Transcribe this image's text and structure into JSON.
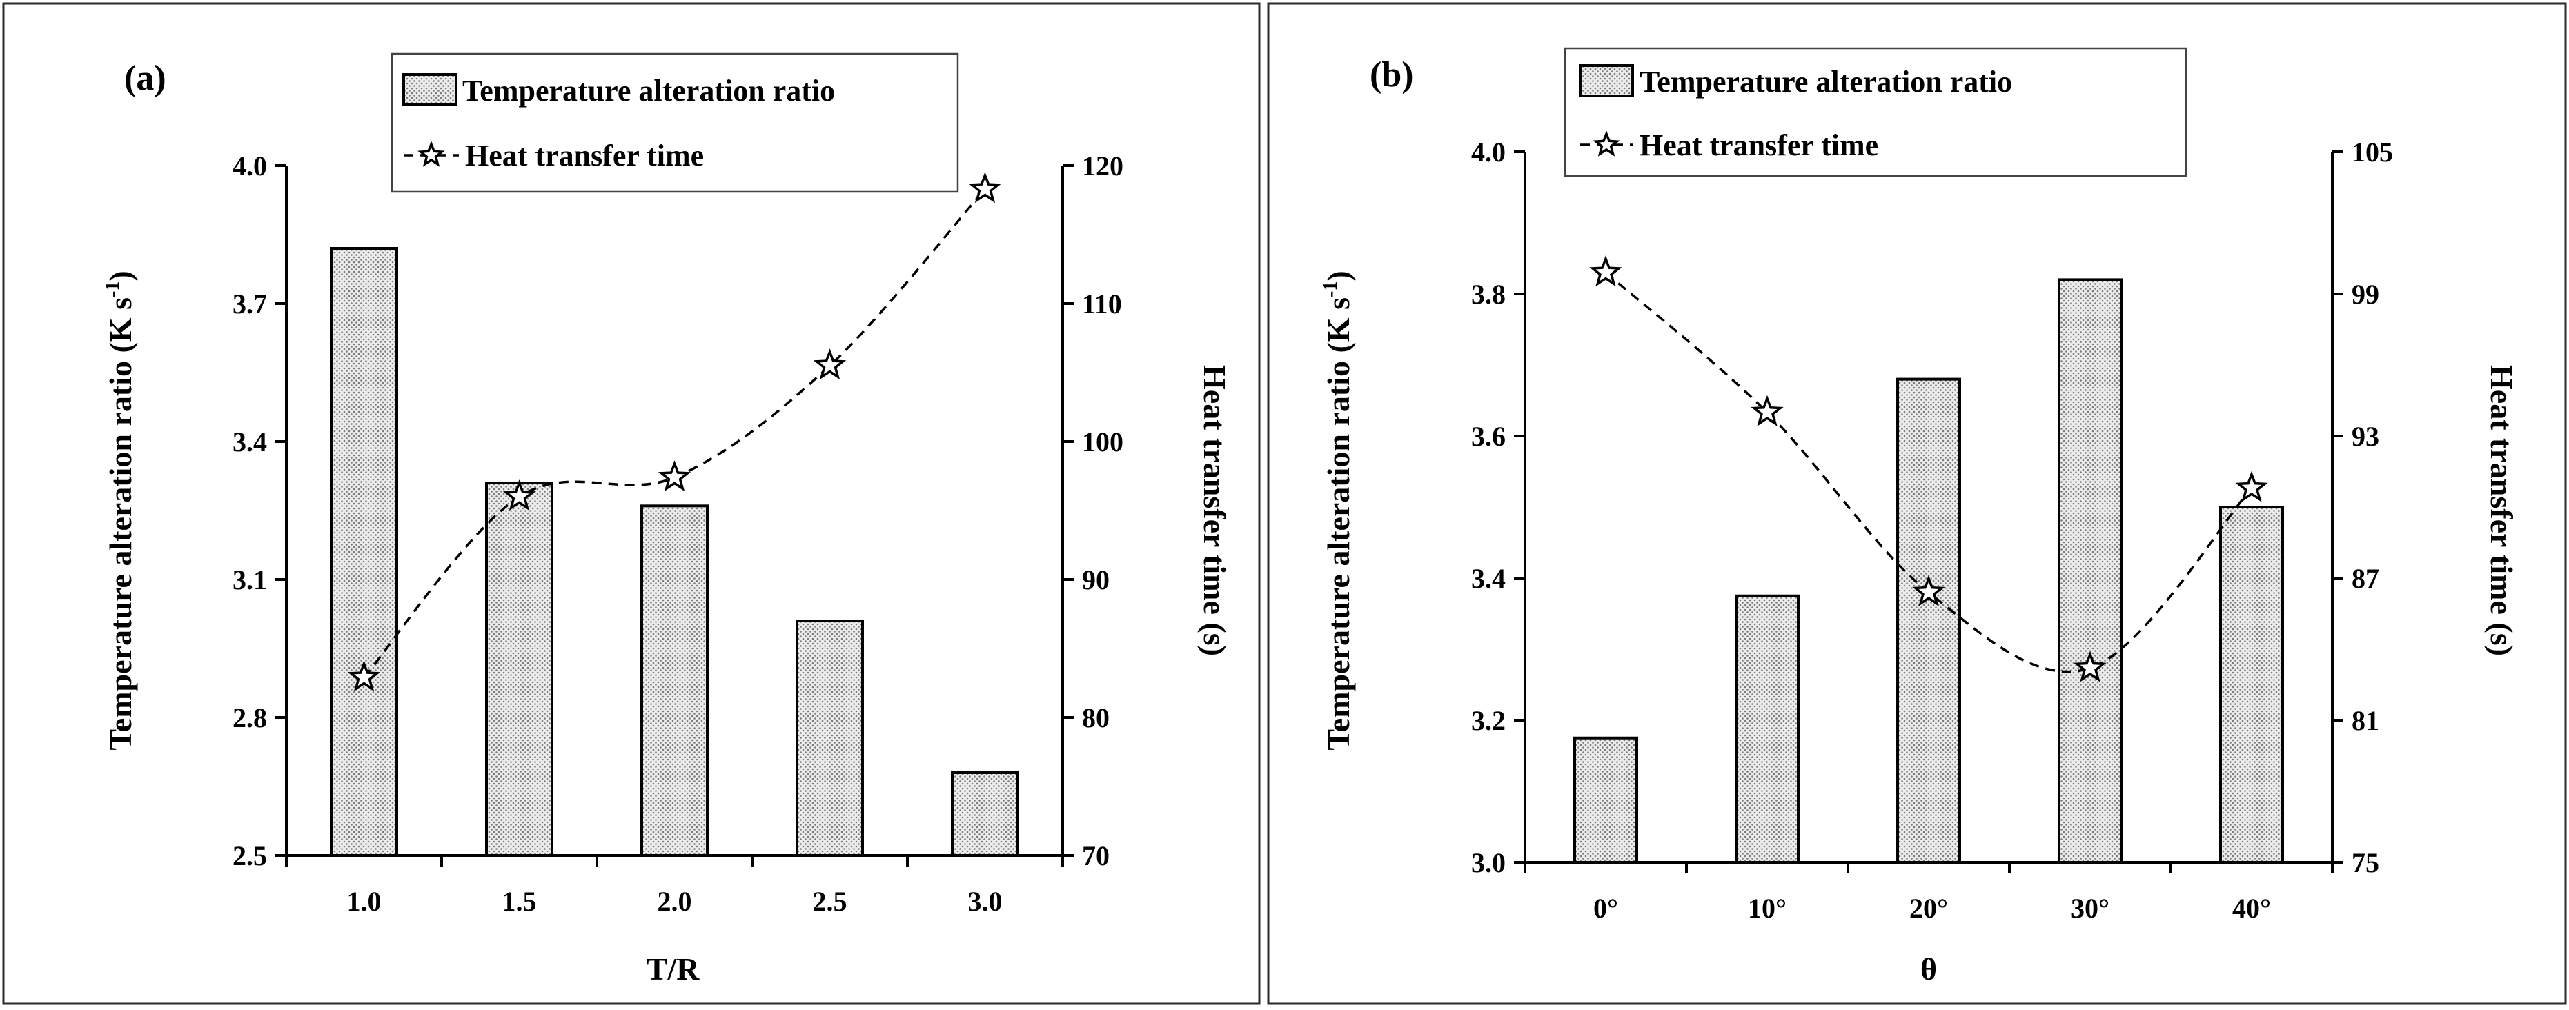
{
  "chart_data": [
    {
      "type": "bar+line",
      "panel_label": "(a)",
      "categories": [
        "1.0",
        "1.5",
        "2.0",
        "2.5",
        "3.0"
      ],
      "xlabel": "T/R",
      "ylabel_left": "Temperature alteration ratio (K s",
      "ylabel_left_sup": "-1",
      "ylabel_left_end": ")",
      "ylabel_right": "Heat transfer time (s)",
      "left_ylim": [
        2.5,
        4.0
      ],
      "left_ticks": [
        "2.5",
        "2.8",
        "3.1",
        "3.4",
        "3.7",
        "4.0"
      ],
      "right_ylim": [
        70,
        120
      ],
      "right_ticks": [
        "70",
        "80",
        "90",
        "100",
        "110",
        "120"
      ],
      "series": [
        {
          "name": "Temperature alteration ratio",
          "kind": "bar",
          "axis": "left",
          "values": [
            3.82,
            3.31,
            3.26,
            3.01,
            2.68
          ]
        },
        {
          "name": "Heat transfer time",
          "kind": "line",
          "axis": "right",
          "values": [
            82.9,
            96.0,
            97.4,
            105.5,
            118.3
          ]
        }
      ],
      "legend": [
        "Temperature alteration ratio",
        "Heat transfer time"
      ]
    },
    {
      "type": "bar+line",
      "panel_label": "(b)",
      "categories": [
        "0°",
        "10°",
        "20°",
        "30°",
        "40°"
      ],
      "xlabel": "θ",
      "ylabel_left": "Temperature alteration ratio (K s",
      "ylabel_left_sup": "-1",
      "ylabel_left_end": ")",
      "ylabel_right": "Heat  transfer  time (s)",
      "left_ylim": [
        3.0,
        4.0
      ],
      "left_ticks": [
        "3.0",
        "3.2",
        "3.4",
        "3.6",
        "3.8",
        "4.0"
      ],
      "right_ylim": [
        75,
        105
      ],
      "right_ticks": [
        "75",
        "81",
        "87",
        "93",
        "99",
        "105"
      ],
      "series": [
        {
          "name": "Temperature alteration ratio",
          "kind": "bar",
          "axis": "left",
          "values": [
            3.175,
            3.375,
            3.68,
            3.82,
            3.5
          ]
        },
        {
          "name": "Heat transfer time",
          "kind": "line",
          "axis": "right",
          "values": [
            99.9,
            94.0,
            86.4,
            83.2,
            90.8
          ]
        }
      ],
      "legend": [
        "Temperature alteration ratio",
        "Heat  transfer  time"
      ]
    }
  ]
}
